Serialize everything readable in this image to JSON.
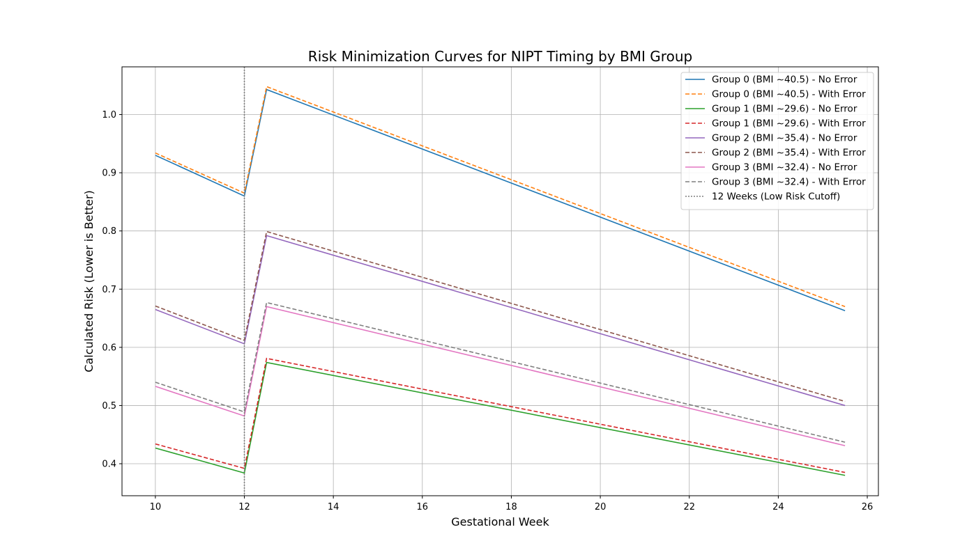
{
  "chart_data": {
    "type": "line",
    "title": "Risk Minimization Curves for NIPT Timing by BMI Group",
    "xlabel": "Gestational Week",
    "ylabel": "Calculated Risk (Lower is Better)",
    "xlim": [
      9.25,
      26.25
    ],
    "ylim": [
      0.345,
      1.082
    ],
    "xticks": [
      10,
      12,
      14,
      16,
      18,
      20,
      22,
      24,
      26
    ],
    "yticks": [
      0.4,
      0.5,
      0.6,
      0.7,
      0.8,
      0.9,
      1.0
    ],
    "grid": true,
    "legend_position": "top-right",
    "series": [
      {
        "name": "Group 0 (BMI ~40.5) - No Error",
        "color": "#1f77b4",
        "dash": "solid",
        "x": [
          10,
          12,
          12.5,
          25.5
        ],
        "y": [
          0.93,
          0.86,
          1.043,
          0.663
        ]
      },
      {
        "name": "Group 0 (BMI ~40.5) - With Error",
        "color": "#ff7f0e",
        "dash": "dashed",
        "x": [
          10,
          12,
          12.5,
          25.5
        ],
        "y": [
          0.934,
          0.865,
          1.048,
          0.67
        ]
      },
      {
        "name": "Group 1 (BMI ~29.6) - No Error",
        "color": "#2ca02c",
        "dash": "solid",
        "x": [
          10,
          12,
          12.5,
          25.5
        ],
        "y": [
          0.427,
          0.384,
          0.574,
          0.38
        ]
      },
      {
        "name": "Group 1 (BMI ~29.6) - With Error",
        "color": "#d62728",
        "dash": "dashed",
        "x": [
          10,
          12,
          12.5,
          25.5
        ],
        "y": [
          0.434,
          0.392,
          0.581,
          0.385
        ]
      },
      {
        "name": "Group 2 (BMI ~35.4) - No Error",
        "color": "#9467bd",
        "dash": "solid",
        "x": [
          10,
          12,
          12.5,
          25.5
        ],
        "y": [
          0.665,
          0.606,
          0.792,
          0.5
        ]
      },
      {
        "name": "Group 2 (BMI ~35.4) - With Error",
        "color": "#8c564b",
        "dash": "dashed",
        "x": [
          10,
          12,
          12.5,
          25.5
        ],
        "y": [
          0.671,
          0.612,
          0.799,
          0.507
        ]
      },
      {
        "name": "Group 3 (BMI ~32.4) - No Error",
        "color": "#e377c2",
        "dash": "solid",
        "x": [
          10,
          12,
          12.5,
          25.5
        ],
        "y": [
          0.533,
          0.482,
          0.67,
          0.431
        ]
      },
      {
        "name": "Group 3 (BMI ~32.4) - With Error",
        "color": "#7f7f7f",
        "dash": "dashed",
        "x": [
          10,
          12,
          12.5,
          25.5
        ],
        "y": [
          0.54,
          0.489,
          0.677,
          0.437
        ]
      }
    ],
    "vline": {
      "x": 12,
      "name": "12 Weeks (Low Risk Cutoff)",
      "color": "#7f7f7f",
      "dash": "dotted"
    }
  }
}
